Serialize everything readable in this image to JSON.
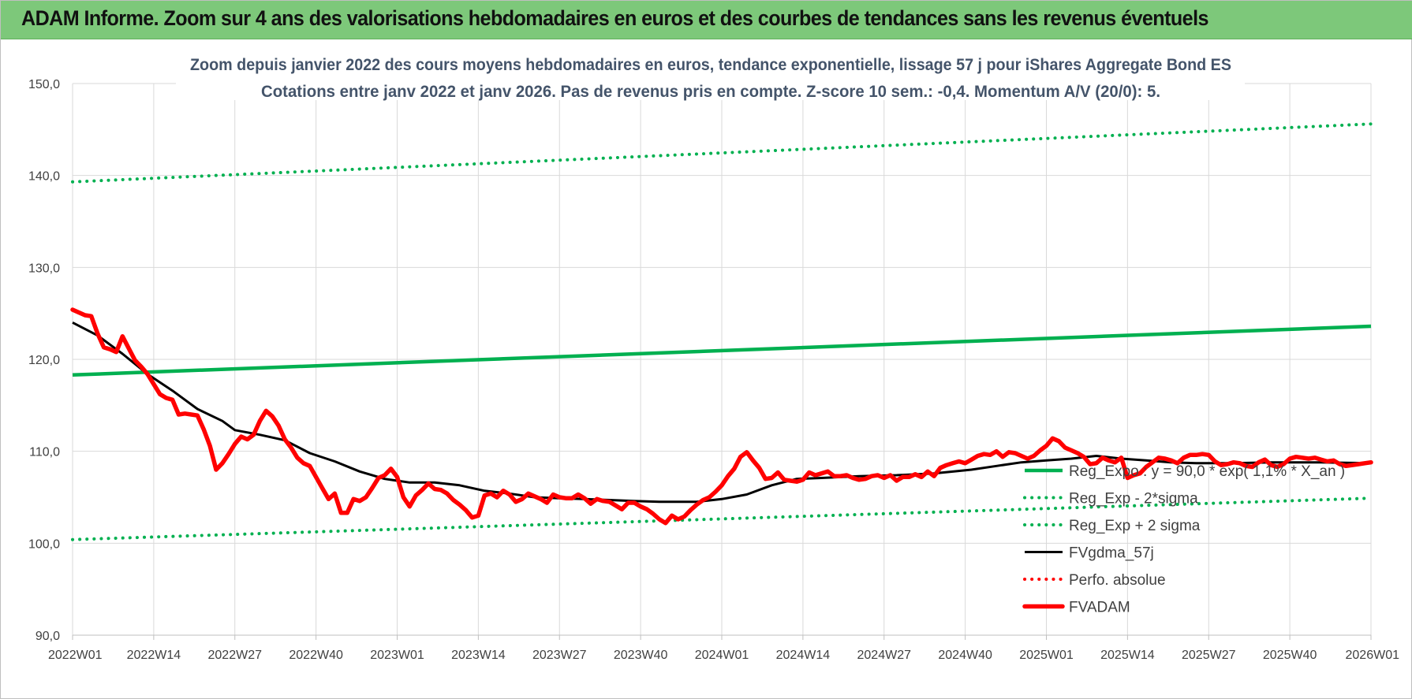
{
  "banner": {
    "title": "ADAM Informe. Zoom sur 4 ans des valorisations hebdomadaires en euros et des courbes de tendances sans les revenus éventuels",
    "color": "#7dc87a"
  },
  "chart_data": {
    "type": "line",
    "title": "Zoom depuis janvier 2022 des cours moyens hebdomadaires en euros, tendance exponentielle, lissage 57 j pour iShares Aggregate  Bond ES",
    "subtitle": "Cotations entre janv 2022 et janv 2026. Pas de revenus pris en compte. Z-score 10 sem.: -0,4.  Momentum A/V (20/0): 5.",
    "xlabel": "",
    "ylabel": "",
    "ylim": [
      90,
      150
    ],
    "yticks": [
      "150,0",
      "140,0",
      "130,0",
      "120,0",
      "110,0",
      "100,0",
      "90,0"
    ],
    "x_categories": [
      "2022W01",
      "2022W14",
      "2022W27",
      "2022W40",
      "2023W01",
      "2023W14",
      "2023W27",
      "2023W40",
      "2024W01",
      "2024W14",
      "2024W27",
      "2024W40",
      "2025W01",
      "2025W14",
      "2025W27",
      "2025W40",
      "2026W01"
    ],
    "grid": true,
    "legend_position": "bottom-right",
    "series": [
      {
        "name": "Reg_Expo : y = 90,0 * exp( 1,1% * X_an )",
        "color": "#00b050",
        "style": "solid",
        "points": [
          [
            0,
            118.3
          ],
          [
            208,
            123.6
          ]
        ]
      },
      {
        "name": "Reg_Exp - 2*sigma",
        "color": "#00b050",
        "style": "dotted",
        "points": [
          [
            0,
            100.4
          ],
          [
            208,
            104.9
          ]
        ]
      },
      {
        "name": "Reg_Exp + 2 sigma",
        "color": "#00b050",
        "style": "dotted",
        "points": [
          [
            0,
            139.3
          ],
          [
            208,
            145.6
          ]
        ]
      },
      {
        "name": "FVgdma_57j",
        "color": "#000000",
        "style": "solid",
        "points": [
          [
            0,
            124.0
          ],
          [
            4,
            122.6
          ],
          [
            8,
            120.6
          ],
          [
            12,
            118.4
          ],
          [
            16,
            116.6
          ],
          [
            20,
            114.6
          ],
          [
            24,
            113.3
          ],
          [
            26,
            112.3
          ],
          [
            30,
            111.8
          ],
          [
            34,
            111.2
          ],
          [
            38,
            109.8
          ],
          [
            42,
            108.9
          ],
          [
            46,
            107.8
          ],
          [
            50,
            107.0
          ],
          [
            54,
            106.6
          ],
          [
            58,
            106.6
          ],
          [
            62,
            106.3
          ],
          [
            66,
            105.7
          ],
          [
            70,
            105.4
          ],
          [
            74,
            105.0
          ],
          [
            78,
            104.9
          ],
          [
            82,
            104.8
          ],
          [
            86,
            104.7
          ],
          [
            90,
            104.6
          ],
          [
            94,
            104.5
          ],
          [
            100,
            104.5
          ],
          [
            104,
            104.8
          ],
          [
            108,
            105.3
          ],
          [
            112,
            106.3
          ],
          [
            116,
            107.0
          ],
          [
            120,
            107.1
          ],
          [
            126,
            107.3
          ],
          [
            132,
            107.4
          ],
          [
            138,
            107.6
          ],
          [
            144,
            108.0
          ],
          [
            148,
            108.4
          ],
          [
            152,
            108.8
          ],
          [
            156,
            109.0
          ],
          [
            160,
            109.2
          ],
          [
            164,
            109.5
          ],
          [
            168,
            109.2
          ],
          [
            172,
            109.0
          ],
          [
            176,
            108.8
          ],
          [
            180,
            108.7
          ],
          [
            186,
            108.7
          ],
          [
            192,
            108.8
          ],
          [
            200,
            108.8
          ],
          [
            208,
            108.7
          ]
        ]
      },
      {
        "name": "Perfo. absolue",
        "color": "#ff0000",
        "style": "dotted",
        "points": []
      },
      {
        "name": "FVADAM",
        "color": "#ff0000",
        "style": "thick",
        "points": [
          [
            0,
            125.4
          ],
          [
            1,
            125.1
          ],
          [
            2,
            124.8
          ],
          [
            3,
            124.7
          ],
          [
            4,
            122.8
          ],
          [
            5,
            121.3
          ],
          [
            6,
            121.1
          ],
          [
            7,
            120.8
          ],
          [
            8,
            122.5
          ],
          [
            9,
            121.2
          ],
          [
            10,
            119.9
          ],
          [
            11,
            119.2
          ],
          [
            12,
            118.4
          ],
          [
            13,
            117.3
          ],
          [
            14,
            116.2
          ],
          [
            15,
            115.8
          ],
          [
            16,
            115.6
          ],
          [
            17,
            114.0
          ],
          [
            18,
            114.1
          ],
          [
            19,
            114.0
          ],
          [
            20,
            113.9
          ],
          [
            21,
            112.4
          ],
          [
            22,
            110.6
          ],
          [
            23,
            108.0
          ],
          [
            24,
            108.7
          ],
          [
            25,
            109.7
          ],
          [
            26,
            110.8
          ],
          [
            27,
            111.6
          ],
          [
            28,
            111.3
          ],
          [
            29,
            111.8
          ],
          [
            30,
            113.3
          ],
          [
            31,
            114.4
          ],
          [
            32,
            113.8
          ],
          [
            33,
            112.8
          ],
          [
            34,
            111.3
          ],
          [
            35,
            110.4
          ],
          [
            36,
            109.3
          ],
          [
            37,
            108.7
          ],
          [
            38,
            108.4
          ],
          [
            39,
            107.2
          ],
          [
            40,
            106.0
          ],
          [
            41,
            104.8
          ],
          [
            42,
            105.4
          ],
          [
            43,
            103.3
          ],
          [
            44,
            103.3
          ],
          [
            45,
            104.8
          ],
          [
            46,
            104.6
          ],
          [
            47,
            105.0
          ],
          [
            48,
            106.0
          ],
          [
            49,
            107.1
          ],
          [
            50,
            107.4
          ],
          [
            51,
            108.1
          ],
          [
            52,
            107.2
          ],
          [
            53,
            105.0
          ],
          [
            54,
            104.0
          ],
          [
            55,
            105.2
          ],
          [
            56,
            105.8
          ],
          [
            57,
            106.5
          ],
          [
            58,
            105.9
          ],
          [
            59,
            105.8
          ],
          [
            60,
            105.4
          ],
          [
            61,
            104.7
          ],
          [
            62,
            104.2
          ],
          [
            63,
            103.6
          ],
          [
            64,
            102.8
          ],
          [
            65,
            103.0
          ],
          [
            66,
            105.2
          ],
          [
            67,
            105.4
          ],
          [
            68,
            105.0
          ],
          [
            69,
            105.7
          ],
          [
            70,
            105.3
          ],
          [
            71,
            104.5
          ],
          [
            72,
            104.8
          ],
          [
            73,
            105.4
          ],
          [
            74,
            105.1
          ],
          [
            75,
            104.8
          ],
          [
            76,
            104.4
          ],
          [
            77,
            105.3
          ],
          [
            78,
            105.0
          ],
          [
            79,
            104.9
          ],
          [
            80,
            104.9
          ],
          [
            81,
            105.3
          ],
          [
            82,
            104.9
          ],
          [
            83,
            104.3
          ],
          [
            84,
            104.8
          ],
          [
            85,
            104.6
          ],
          [
            86,
            104.5
          ],
          [
            87,
            104.1
          ],
          [
            88,
            103.7
          ],
          [
            89,
            104.4
          ],
          [
            90,
            104.4
          ],
          [
            91,
            104.0
          ],
          [
            92,
            103.7
          ],
          [
            93,
            103.2
          ],
          [
            94,
            102.6
          ],
          [
            95,
            102.2
          ],
          [
            96,
            103.0
          ],
          [
            97,
            102.6
          ],
          [
            98,
            102.9
          ],
          [
            99,
            103.6
          ],
          [
            100,
            104.2
          ],
          [
            101,
            104.7
          ],
          [
            102,
            105.0
          ],
          [
            103,
            105.6
          ],
          [
            104,
            106.3
          ],
          [
            105,
            107.3
          ],
          [
            106,
            108.1
          ],
          [
            107,
            109.4
          ],
          [
            108,
            109.9
          ],
          [
            109,
            109.0
          ],
          [
            110,
            108.2
          ],
          [
            111,
            107.0
          ],
          [
            112,
            107.1
          ],
          [
            113,
            107.7
          ],
          [
            114,
            106.9
          ],
          [
            115,
            106.8
          ],
          [
            116,
            106.7
          ],
          [
            117,
            106.9
          ],
          [
            118,
            107.7
          ],
          [
            119,
            107.4
          ],
          [
            120,
            107.6
          ],
          [
            121,
            107.8
          ],
          [
            122,
            107.3
          ],
          [
            123,
            107.3
          ],
          [
            124,
            107.4
          ],
          [
            125,
            107.1
          ],
          [
            126,
            106.9
          ],
          [
            127,
            107.0
          ],
          [
            128,
            107.3
          ],
          [
            129,
            107.4
          ],
          [
            130,
            107.1
          ],
          [
            131,
            107.4
          ],
          [
            132,
            106.8
          ],
          [
            133,
            107.2
          ],
          [
            134,
            107.2
          ],
          [
            135,
            107.5
          ],
          [
            136,
            107.2
          ],
          [
            137,
            107.8
          ],
          [
            138,
            107.3
          ],
          [
            139,
            108.2
          ],
          [
            140,
            108.5
          ],
          [
            141,
            108.7
          ],
          [
            142,
            108.9
          ],
          [
            143,
            108.7
          ],
          [
            144,
            109.1
          ],
          [
            145,
            109.5
          ],
          [
            146,
            109.7
          ],
          [
            147,
            109.6
          ],
          [
            148,
            110.0
          ],
          [
            149,
            109.4
          ],
          [
            150,
            109.9
          ],
          [
            151,
            109.8
          ],
          [
            152,
            109.5
          ],
          [
            153,
            109.2
          ],
          [
            154,
            109.5
          ],
          [
            155,
            110.1
          ],
          [
            156,
            110.6
          ],
          [
            157,
            111.4
          ],
          [
            158,
            111.1
          ],
          [
            159,
            110.4
          ],
          [
            160,
            110.1
          ],
          [
            161,
            109.8
          ],
          [
            162,
            109.4
          ],
          [
            163,
            108.6
          ],
          [
            164,
            108.7
          ],
          [
            165,
            109.3
          ],
          [
            166,
            109.0
          ],
          [
            167,
            108.8
          ],
          [
            168,
            109.3
          ],
          [
            169,
            107.1
          ],
          [
            170,
            107.4
          ],
          [
            171,
            107.6
          ],
          [
            172,
            108.3
          ],
          [
            173,
            108.8
          ],
          [
            174,
            109.3
          ],
          [
            175,
            109.2
          ],
          [
            176,
            109.0
          ],
          [
            177,
            108.7
          ],
          [
            178,
            109.3
          ],
          [
            179,
            109.6
          ],
          [
            180,
            109.6
          ],
          [
            181,
            109.7
          ],
          [
            182,
            109.6
          ],
          [
            183,
            108.9
          ],
          [
            184,
            108.5
          ],
          [
            185,
            108.6
          ],
          [
            186,
            108.8
          ],
          [
            187,
            108.7
          ],
          [
            188,
            108.4
          ],
          [
            189,
            108.3
          ],
          [
            190,
            108.8
          ],
          [
            191,
            109.1
          ],
          [
            192,
            108.5
          ],
          [
            193,
            108.3
          ],
          [
            194,
            108.6
          ],
          [
            195,
            109.2
          ],
          [
            196,
            109.4
          ],
          [
            197,
            109.3
          ],
          [
            198,
            109.2
          ],
          [
            199,
            109.3
          ],
          [
            200,
            109.1
          ],
          [
            201,
            108.9
          ],
          [
            202,
            109.0
          ],
          [
            203,
            108.6
          ],
          [
            204,
            108.4
          ],
          [
            205,
            108.5
          ],
          [
            206,
            108.6
          ],
          [
            207,
            108.7
          ],
          [
            208,
            108.8
          ]
        ]
      }
    ]
  }
}
